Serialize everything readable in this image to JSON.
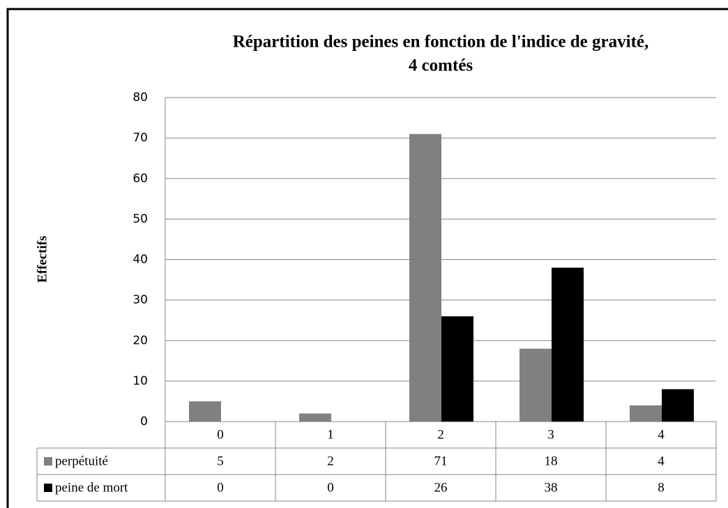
{
  "chart_data": {
    "type": "bar",
    "title": "Répartition des peines en fonction de l'indice de gravité,",
    "subtitle": "4 comtés",
    "y_label": "Effectifs",
    "categories": [
      "0",
      "1",
      "2",
      "3",
      "4"
    ],
    "series": [
      {
        "name": "perpétuité",
        "color": "#808080",
        "values": [
          5,
          2,
          71,
          18,
          4
        ]
      },
      {
        "name": "peine de mort",
        "color": "#000000",
        "values": [
          0,
          0,
          26,
          38,
          8
        ]
      }
    ],
    "ylim": [
      0,
      80
    ],
    "yticks": [
      0,
      10,
      20,
      30,
      40,
      50,
      60,
      70,
      80
    ],
    "grid": true
  }
}
